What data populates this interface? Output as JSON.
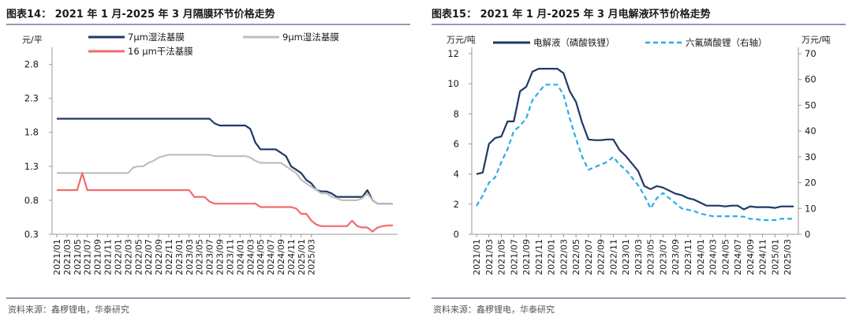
{
  "left_panel": {
    "title": "图表14： 2021 年 1 月-2025 年 3 月隔膜环节价格走势",
    "source": "资料来源：鑫椤锂电，华泰研究"
  },
  "right_panel": {
    "title": "图表15： 2021 年 1 月-2025 年 3 月电解液环节价格走势",
    "source": "资料来源：鑫椤锂电，华泰研究"
  },
  "colors": {
    "navy": "#1f3864",
    "gray": "#bfbfbf",
    "red": "#f26b6b",
    "cyan": "#27aee3",
    "rule": "#1f3864",
    "axis": "#999999"
  },
  "chart_data": [
    {
      "type": "line",
      "title": "图表14： 2021 年 1 月-2025 年 3 月隔膜环节价格走势",
      "ylabel": "元/平",
      "ylim": [
        0.3,
        3.05
      ],
      "yticks": [
        "0.3",
        "0.8",
        "1.3",
        "1.8",
        "2.3",
        "2.8"
      ],
      "x_tick_labels": [
        "2021/01",
        "2021/03",
        "2021/05",
        "2021/07",
        "2021/09",
        "2021/11",
        "2022/01",
        "2022/03",
        "2022/05",
        "2022/07",
        "2022/09",
        "2022/11",
        "2023/01",
        "2023/03",
        "2023/05",
        "2023/07",
        "2023/09",
        "2023/11",
        "2024/01",
        "2024/03",
        "2024/05",
        "2024/07",
        "2024/09",
        "2024/11",
        "2025/01",
        "2025/03"
      ],
      "grid": false,
      "legend_position": "top",
      "series": [
        {
          "name": "7μm湿法基膜",
          "color": "#1f3864",
          "values": [
            2.0,
            2.0,
            2.0,
            2.0,
            2.0,
            2.0,
            2.0,
            2.0,
            2.0,
            2.0,
            2.0,
            2.0,
            2.0,
            2.0,
            2.0,
            2.0,
            2.0,
            2.0,
            2.0,
            2.0,
            2.0,
            2.0,
            2.0,
            2.0,
            2.0,
            2.0,
            2.0,
            2.0,
            2.0,
            2.0,
            2.0,
            1.93,
            1.9,
            1.9,
            1.9,
            1.9,
            1.9,
            1.9,
            1.85,
            1.65,
            1.55,
            1.55,
            1.55,
            1.55,
            1.5,
            1.45,
            1.3,
            1.25,
            1.2,
            1.1,
            1.05,
            0.95,
            0.93,
            0.93,
            0.9,
            0.85,
            0.85,
            0.85,
            0.85,
            0.85,
            0.85,
            0.95,
            0.8,
            0.75,
            0.75,
            0.75,
            0.75
          ]
        },
        {
          "name": "9μm湿法基膜",
          "color": "#bfbfbf",
          "values": [
            1.2,
            1.2,
            1.2,
            1.2,
            1.2,
            1.2,
            1.2,
            1.2,
            1.2,
            1.2,
            1.2,
            1.2,
            1.2,
            1.2,
            1.2,
            1.28,
            1.3,
            1.3,
            1.35,
            1.38,
            1.43,
            1.45,
            1.47,
            1.47,
            1.47,
            1.47,
            1.47,
            1.47,
            1.47,
            1.47,
            1.47,
            1.45,
            1.45,
            1.45,
            1.45,
            1.45,
            1.45,
            1.45,
            1.43,
            1.38,
            1.35,
            1.35,
            1.35,
            1.35,
            1.35,
            1.3,
            1.25,
            1.2,
            1.1,
            1.05,
            1.0,
            0.95,
            0.9,
            0.9,
            0.85,
            0.83,
            0.8,
            0.8,
            0.8,
            0.8,
            0.83,
            0.9,
            0.8,
            0.75,
            0.75,
            0.75,
            0.75
          ]
        },
        {
          "name": "16 μm干法基膜",
          "color": "#f26b6b",
          "values": [
            0.95,
            0.95,
            0.95,
            0.95,
            0.95,
            1.2,
            0.95,
            0.95,
            0.95,
            0.95,
            0.95,
            0.95,
            0.95,
            0.95,
            0.95,
            0.95,
            0.95,
            0.95,
            0.95,
            0.95,
            0.95,
            0.95,
            0.95,
            0.95,
            0.95,
            0.95,
            0.95,
            0.85,
            0.85,
            0.85,
            0.78,
            0.75,
            0.75,
            0.75,
            0.75,
            0.75,
            0.75,
            0.75,
            0.75,
            0.75,
            0.7,
            0.7,
            0.7,
            0.7,
            0.7,
            0.7,
            0.7,
            0.68,
            0.6,
            0.6,
            0.5,
            0.44,
            0.42,
            0.42,
            0.42,
            0.42,
            0.42,
            0.42,
            0.5,
            0.42,
            0.4,
            0.4,
            0.34,
            0.4,
            0.42,
            0.43,
            0.43
          ]
        }
      ]
    },
    {
      "type": "line",
      "title": "图表15： 2021 年 1 月-2025 年 3 月电解液环节价格走势",
      "ylabel": "万元/吨",
      "ylabel_right": "万元/吨",
      "ylim": [
        0,
        12
      ],
      "ylim_right": [
        0,
        70
      ],
      "yticks": [
        "0",
        "2",
        "4",
        "6",
        "8",
        "10",
        "12"
      ],
      "yticks_right": [
        "0",
        "10",
        "20",
        "30",
        "40",
        "50",
        "60",
        "70"
      ],
      "x_tick_labels": [
        "2021/01",
        "2021/03",
        "2021/05",
        "2021/07",
        "2021/09",
        "2021/11",
        "2022/01",
        "2022/03",
        "2022/05",
        "2022/07",
        "2022/09",
        "2022/11",
        "2023/01",
        "2023/03",
        "2023/05",
        "2023/07",
        "2023/09",
        "2023/11",
        "2024/01",
        "2024/03",
        "2024/05",
        "2024/07",
        "2024/09",
        "2024/11",
        "2025/01",
        "2025/03"
      ],
      "grid": false,
      "legend_position": "top",
      "series": [
        {
          "name": "电解液（磷酸铁锂）",
          "axis": "left",
          "color": "#1f3864",
          "dashed": false,
          "values": [
            4.0,
            4.1,
            6.0,
            6.4,
            6.5,
            7.5,
            7.5,
            9.5,
            9.8,
            10.8,
            11.0,
            11.0,
            11.0,
            11.0,
            10.7,
            9.5,
            8.8,
            7.4,
            6.3,
            6.25,
            6.25,
            6.3,
            6.3,
            5.6,
            5.2,
            4.7,
            4.2,
            3.2,
            3.0,
            3.2,
            3.1,
            2.9,
            2.7,
            2.6,
            2.4,
            2.3,
            2.1,
            1.9,
            1.9,
            1.9,
            1.85,
            1.9,
            1.9,
            1.65,
            1.85,
            1.8,
            1.8,
            1.8,
            1.75,
            1.85,
            1.85,
            1.85
          ]
        },
        {
          "name": "六氟磷酸锂（右轴）",
          "axis": "right",
          "color": "#27aee3",
          "dashed": true,
          "values": [
            11,
            15,
            20,
            22,
            28,
            33,
            40,
            42,
            45,
            52,
            55,
            58,
            58,
            58,
            54,
            45,
            37,
            30,
            25,
            26,
            27,
            28,
            30,
            27,
            25,
            22,
            19,
            15,
            10,
            14,
            16,
            14,
            12,
            10,
            9.5,
            9,
            8,
            7.5,
            7,
            7,
            7,
            7,
            7,
            6.8,
            6,
            5.8,
            5.5,
            5.5,
            5.5,
            6,
            6,
            6
          ]
        }
      ]
    }
  ]
}
